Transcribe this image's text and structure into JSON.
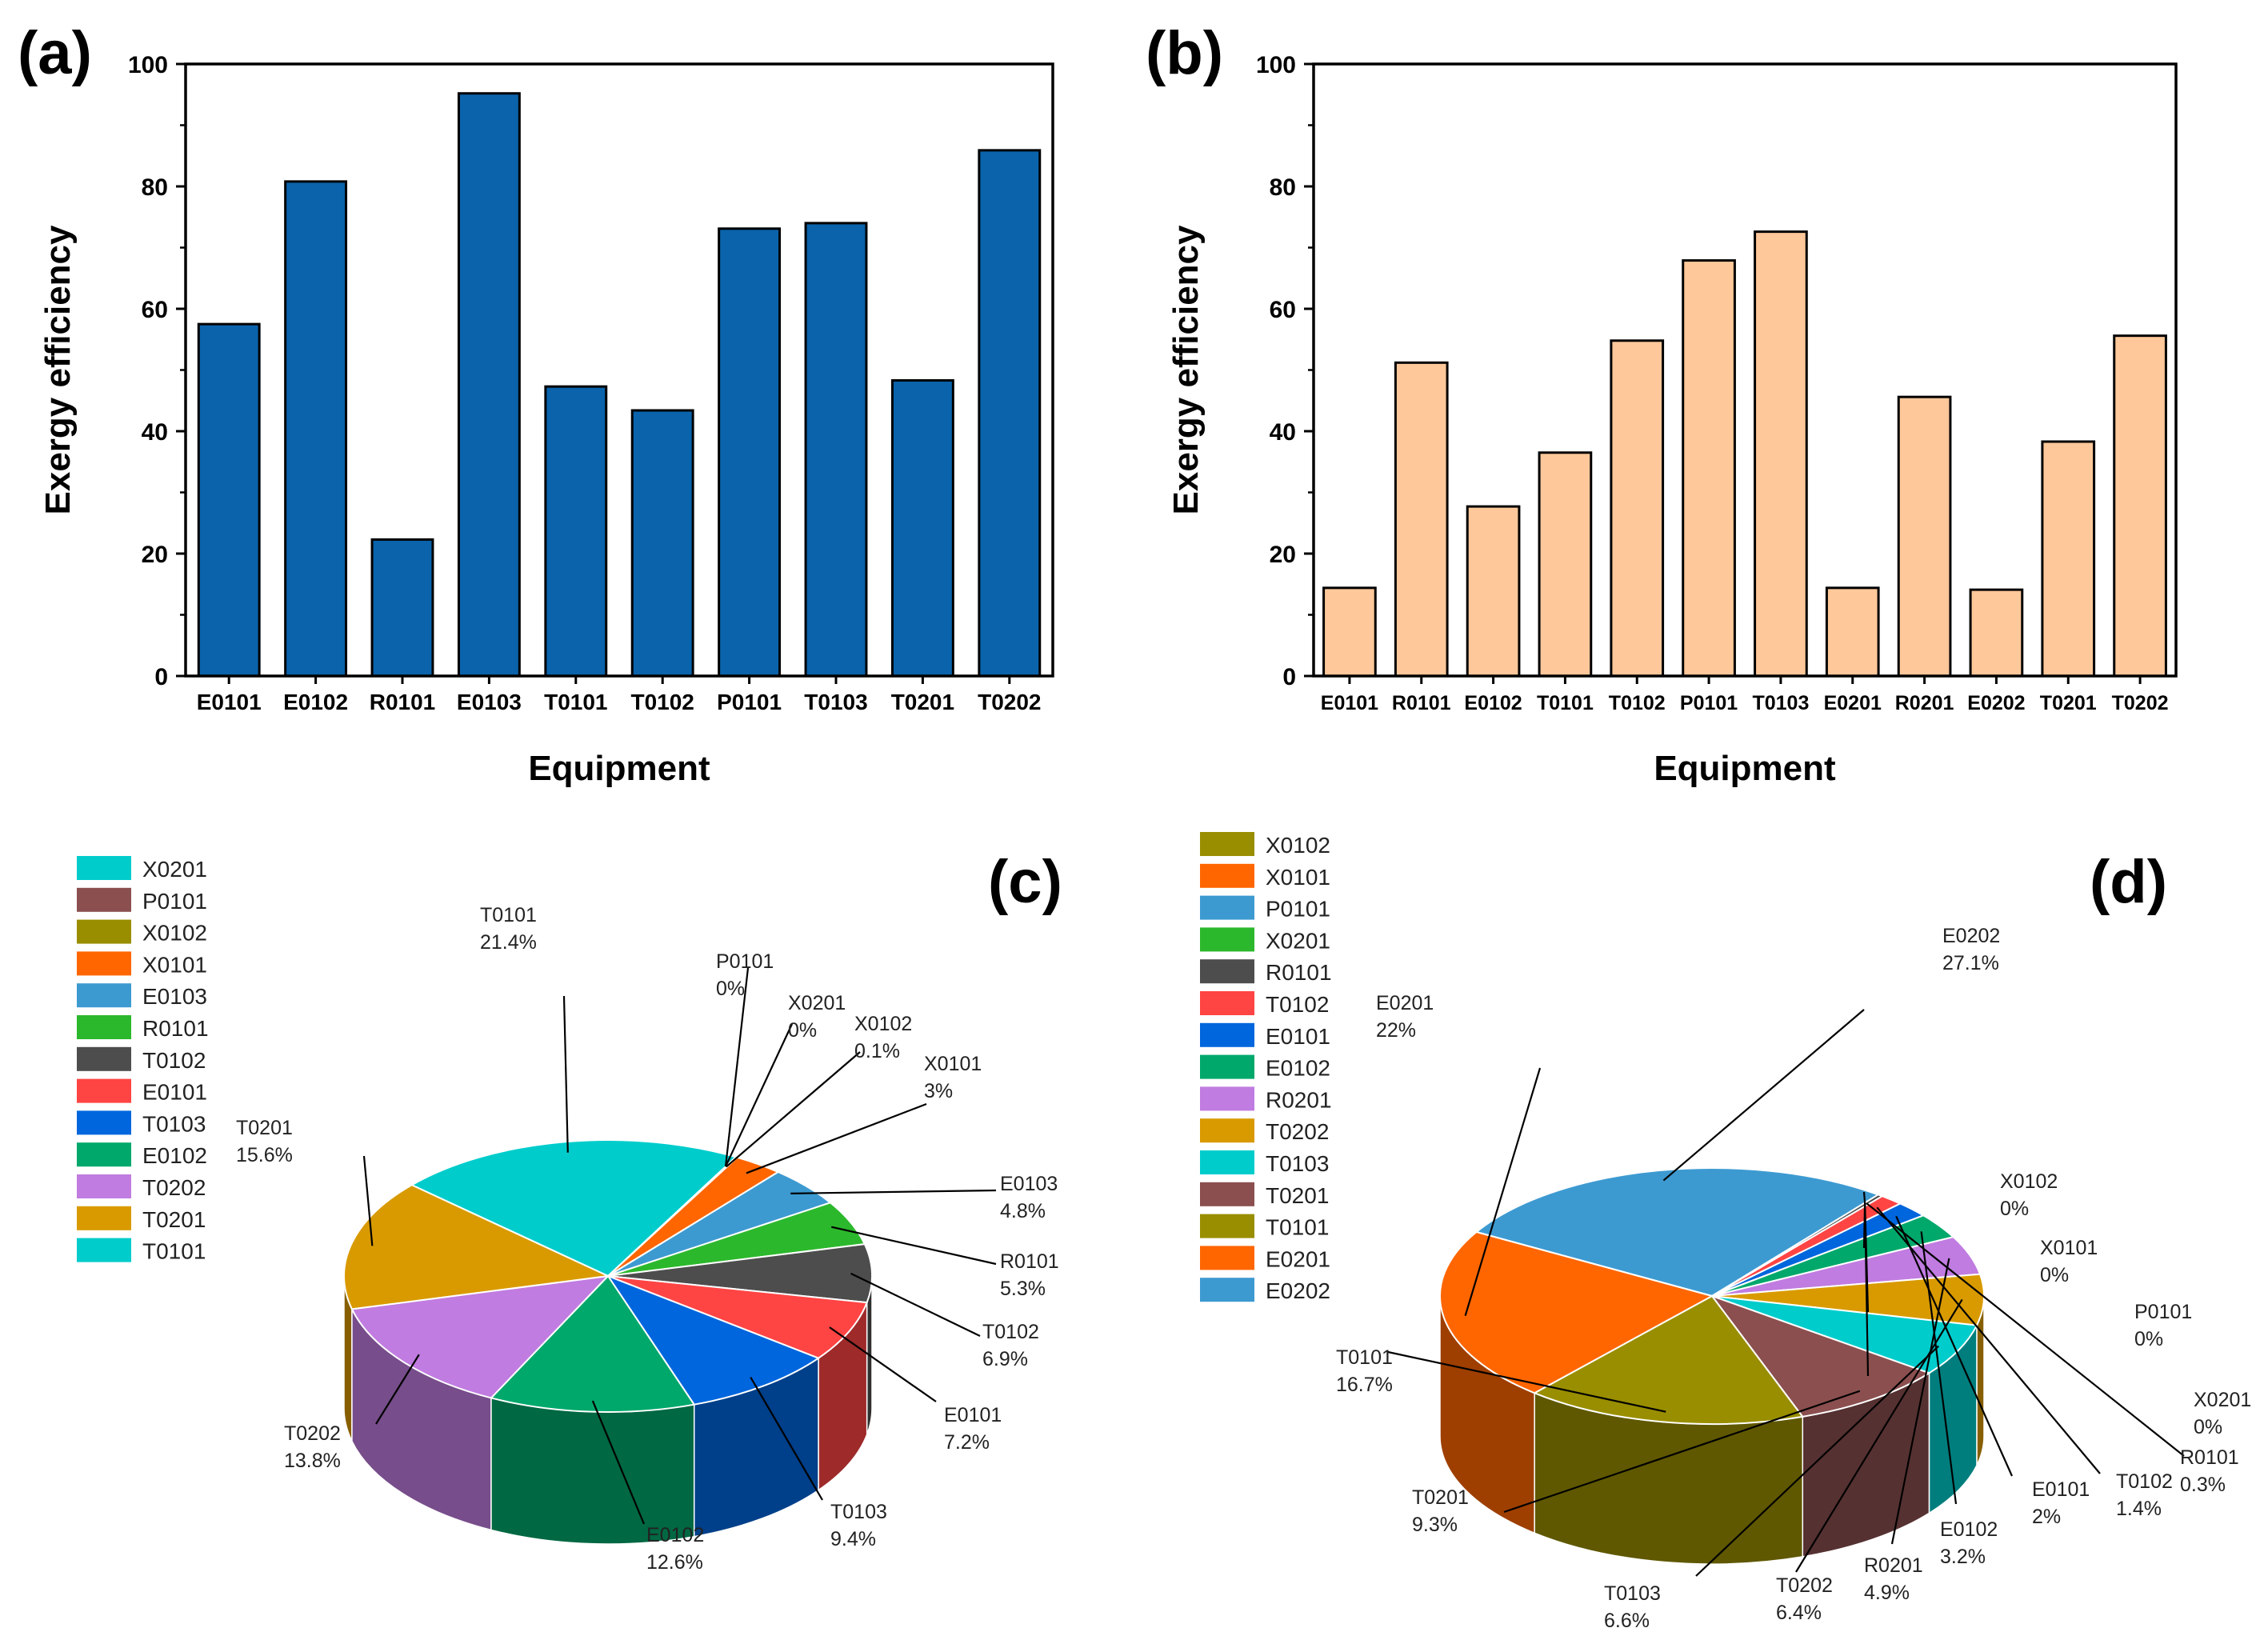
{
  "chart_data": [
    {
      "panel": "(a)",
      "type": "bar",
      "categories": [
        "E0101",
        "E0102",
        "R0101",
        "E0103",
        "T0101",
        "T0102",
        "P0101",
        "T0103",
        "T0201",
        "T0202"
      ],
      "values": [
        57.5,
        80.8,
        22.3,
        95.2,
        47.3,
        43.4,
        73.1,
        74.0,
        48.3,
        85.9
      ],
      "xlabel": "Equipment",
      "ylabel": "Exergy efficiency",
      "ylim": [
        0,
        100
      ],
      "yticks": [
        0,
        20,
        40,
        60,
        80,
        100
      ],
      "color": "#0a63ab",
      "grid": false
    },
    {
      "panel": "(b)",
      "type": "bar",
      "categories": [
        "E0101",
        "R0101",
        "E0102",
        "T0101",
        "T0102",
        "P0101",
        "T0103",
        "E0201",
        "R0201",
        "E0202",
        "T0201",
        "T0202"
      ],
      "values": [
        14.4,
        51.2,
        27.7,
        36.5,
        54.8,
        67.9,
        72.6,
        14.4,
        45.6,
        14.1,
        38.3,
        55.6
      ],
      "xlabel": "Equipment",
      "ylabel": "Exergy efficiency",
      "ylim": [
        0,
        100
      ],
      "yticks": [
        0,
        20,
        40,
        60,
        80,
        100
      ],
      "color": "#fec89a",
      "grid": false
    },
    {
      "panel": "(c)",
      "type": "pie",
      "legend_position": "top-left",
      "legend": [
        {
          "label": "X0201",
          "color": "#00cccc"
        },
        {
          "label": "P0101",
          "color": "#8b4f4f"
        },
        {
          "label": "X0102",
          "color": "#998e00"
        },
        {
          "label": "X0101",
          "color": "#ff6600"
        },
        {
          "label": "E0103",
          "color": "#3d9ad1"
        },
        {
          "label": "R0101",
          "color": "#2cb82c"
        },
        {
          "label": "T0102",
          "color": "#4d4d4d"
        },
        {
          "label": "E0101",
          "color": "#ff4444"
        },
        {
          "label": "T0103",
          "color": "#0066dd"
        },
        {
          "label": "E0102",
          "color": "#00a86b"
        },
        {
          "label": "T0202",
          "color": "#c07ce0"
        },
        {
          "label": "T0201",
          "color": "#d99a00"
        },
        {
          "label": "T0101",
          "color": "#00cccc"
        }
      ],
      "slices": [
        {
          "label": "T0101",
          "value": 21.4,
          "pct": "21.4%",
          "color": "#00cccc",
          "explode": true
        },
        {
          "label": "P0101",
          "value": 0,
          "pct": "0%",
          "color": "#8b4f4f"
        },
        {
          "label": "X0201",
          "value": 0,
          "pct": "0%",
          "color": "#00cccc"
        },
        {
          "label": "X0102",
          "value": 0.1,
          "pct": "0.1%",
          "color": "#998e00"
        },
        {
          "label": "X0101",
          "value": 3,
          "pct": "3%",
          "color": "#ff6600"
        },
        {
          "label": "E0103",
          "value": 4.8,
          "pct": "4.8%",
          "color": "#3d9ad1"
        },
        {
          "label": "R0101",
          "value": 5.3,
          "pct": "5.3%",
          "color": "#2cb82c"
        },
        {
          "label": "T0102",
          "value": 6.9,
          "pct": "6.9%",
          "color": "#4d4d4d"
        },
        {
          "label": "E0101",
          "value": 7.2,
          "pct": "7.2%",
          "color": "#ff4444"
        },
        {
          "label": "T0103",
          "value": 9.4,
          "pct": "9.4%",
          "color": "#0066dd"
        },
        {
          "label": "E0102",
          "value": 12.6,
          "pct": "12.6%",
          "color": "#00a86b"
        },
        {
          "label": "T0202",
          "value": 13.8,
          "pct": "13.8%",
          "color": "#c07ce0"
        },
        {
          "label": "T0201",
          "value": 15.6,
          "pct": "15.6%",
          "color": "#d99a00"
        }
      ]
    },
    {
      "panel": "(d)",
      "type": "pie",
      "legend_position": "top-left",
      "legend": [
        {
          "label": "X0102",
          "color": "#998e00"
        },
        {
          "label": "X0101",
          "color": "#ff6600"
        },
        {
          "label": "P0101",
          "color": "#3d9ad1"
        },
        {
          "label": "X0201",
          "color": "#2cb82c"
        },
        {
          "label": "R0101",
          "color": "#4d4d4d"
        },
        {
          "label": "T0102",
          "color": "#ff4444"
        },
        {
          "label": "E0101",
          "color": "#0066dd"
        },
        {
          "label": "E0102",
          "color": "#00a86b"
        },
        {
          "label": "R0201",
          "color": "#c07ce0"
        },
        {
          "label": "T0202",
          "color": "#d99a00"
        },
        {
          "label": "T0103",
          "color": "#00cccc"
        },
        {
          "label": "T0201",
          "color": "#8b4f4f"
        },
        {
          "label": "T0101",
          "color": "#998e00"
        },
        {
          "label": "E0201",
          "color": "#ff6600"
        },
        {
          "label": "E0202",
          "color": "#3d9ad1"
        }
      ],
      "slices": [
        {
          "label": "E0202",
          "value": 27.1,
          "pct": "27.1%",
          "color": "#3d9ad1",
          "explode": true
        },
        {
          "label": "X0102",
          "value": 0,
          "pct": "0%",
          "color": "#998e00"
        },
        {
          "label": "X0101",
          "value": 0,
          "pct": "0%",
          "color": "#ff6600"
        },
        {
          "label": "P0101",
          "value": 0,
          "pct": "0%",
          "color": "#3d9ad1"
        },
        {
          "label": "X0201",
          "value": 0,
          "pct": "0%",
          "color": "#2cb82c"
        },
        {
          "label": "R0101",
          "value": 0.3,
          "pct": "0.3%",
          "color": "#4d4d4d"
        },
        {
          "label": "T0102",
          "value": 1.4,
          "pct": "1.4%",
          "color": "#ff4444"
        },
        {
          "label": "E0101",
          "value": 2,
          "pct": "2%",
          "color": "#0066dd"
        },
        {
          "label": "E0102",
          "value": 3.2,
          "pct": "3.2%",
          "color": "#00a86b"
        },
        {
          "label": "R0201",
          "value": 4.9,
          "pct": "4.9%",
          "color": "#c07ce0"
        },
        {
          "label": "T0202",
          "value": 6.4,
          "pct": "6.4%",
          "color": "#d99a00"
        },
        {
          "label": "T0103",
          "value": 6.6,
          "pct": "6.6%",
          "color": "#00cccc"
        },
        {
          "label": "T0201",
          "value": 9.3,
          "pct": "9.3%",
          "color": "#8b4f4f"
        },
        {
          "label": "T0101",
          "value": 16.7,
          "pct": "16.7%",
          "color": "#998e00"
        },
        {
          "label": "E0201",
          "value": 22,
          "pct": "22%",
          "color": "#ff6600"
        }
      ]
    }
  ]
}
